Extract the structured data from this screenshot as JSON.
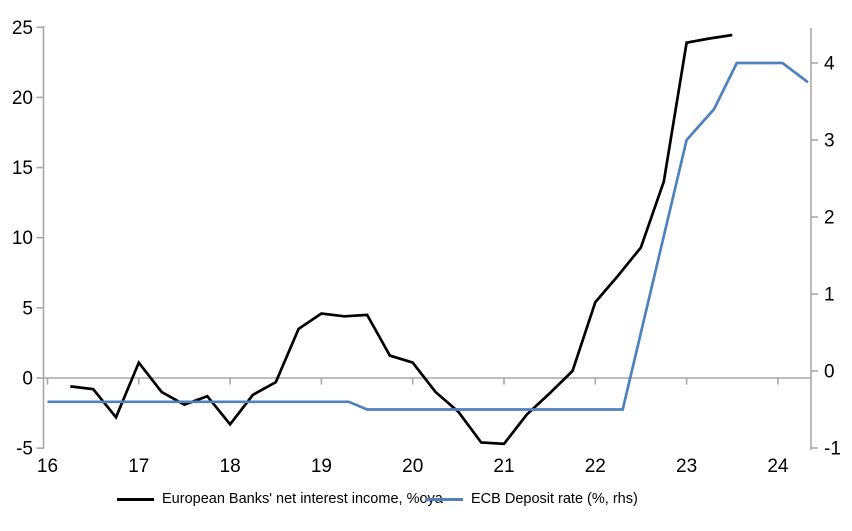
{
  "chart_data": {
    "type": "line",
    "title": "",
    "x_axis": {
      "tick_labels": [
        "16",
        "17",
        "18",
        "19",
        "20",
        "21",
        "22",
        "23",
        "24"
      ],
      "ticks": [
        16,
        17,
        18,
        19,
        20,
        21,
        22,
        23,
        24
      ],
      "range": [
        16,
        24.37
      ],
      "grid": false
    },
    "left_axis": {
      "ticks": [
        25,
        20,
        15,
        10,
        5,
        0,
        -5
      ],
      "range": [
        -5,
        25
      ]
    },
    "right_axis": {
      "ticks": [
        4,
        3,
        2,
        1,
        0,
        -1
      ],
      "range": [
        -1,
        4.5
      ]
    },
    "colors": {
      "axis_gray": "#a8a8a8",
      "nii_black": "#000000",
      "ecb_blue": "#4f81bd"
    },
    "legend_position": "bottom",
    "series": [
      {
        "name": "European Banks' net interest income, %oya",
        "axis": "left",
        "color": "#000000",
        "key": "nii-line",
        "points": [
          [
            16.25,
            -0.6
          ],
          [
            16.5,
            -0.8
          ],
          [
            16.75,
            -2.8
          ],
          [
            17.0,
            1.1
          ],
          [
            17.25,
            -1.0
          ],
          [
            17.5,
            -1.9
          ],
          [
            17.75,
            -1.3
          ],
          [
            18.0,
            -3.3
          ],
          [
            18.25,
            -1.2
          ],
          [
            18.5,
            -0.3
          ],
          [
            18.75,
            3.5
          ],
          [
            19.0,
            4.6
          ],
          [
            19.25,
            4.4
          ],
          [
            19.5,
            4.5
          ],
          [
            19.75,
            1.6
          ],
          [
            20.0,
            1.1
          ],
          [
            20.25,
            -1.0
          ],
          [
            20.5,
            -2.4
          ],
          [
            20.75,
            -4.6
          ],
          [
            21.0,
            -4.7
          ],
          [
            21.25,
            -2.6
          ],
          [
            21.5,
            -1.1
          ],
          [
            21.75,
            0.5
          ],
          [
            22.0,
            5.4
          ],
          [
            22.25,
            7.3
          ],
          [
            22.5,
            9.3
          ],
          [
            22.75,
            14.0
          ],
          [
            23.0,
            23.9
          ],
          [
            23.25,
            24.2
          ],
          [
            23.5,
            24.45
          ]
        ]
      },
      {
        "name": "ECB Deposit rate (%, rhs)",
        "axis": "right",
        "color": "#4f81bd",
        "key": "ecb-line",
        "points": [
          [
            16.0,
            -0.4
          ],
          [
            19.3,
            -0.4
          ],
          [
            19.5,
            -0.5
          ],
          [
            22.3,
            -0.5
          ],
          [
            23.0,
            3.0
          ],
          [
            23.3,
            3.4
          ],
          [
            23.55,
            4.0
          ],
          [
            24.05,
            4.0
          ],
          [
            24.33,
            3.75
          ]
        ]
      }
    ]
  }
}
